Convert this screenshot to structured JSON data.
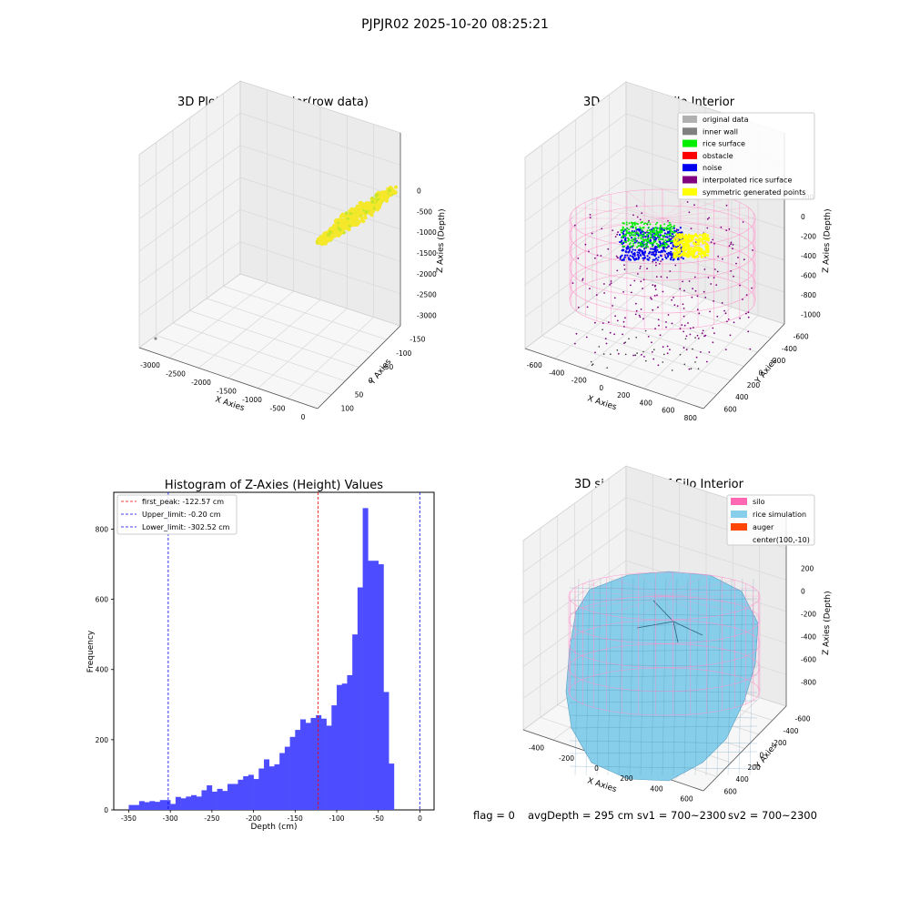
{
  "figure_title": "PJPJR02 2025-10-20 08:25:21",
  "status_line": {
    "flag": "flag = 0",
    "avg_depth": "avgDepth = 295 cm",
    "sv1": "sv1 = 700~2300",
    "sv2": "sv2 = 700~2300"
  },
  "colors": {
    "yellow": "#f5e82a",
    "yellow_green": "#c8e629",
    "green": "#00ee00",
    "blue": "#0000ee",
    "purple": "#800080",
    "pink": "#ff8fc8",
    "gray_light": "#b0b0b0",
    "gray": "#808080",
    "red": "#ff0000",
    "hist_bar": "#4d4dff",
    "sky": "#87ceeb",
    "orange": "#ff4500",
    "silo_legend": "#ff69b4"
  },
  "chart_data": [
    {
      "type": "scatter",
      "title": "3D Plot of Silo Interior(row data)",
      "xlabel": "X Axies",
      "ylabel": "Y Axies",
      "zlabel": "Z Axies (Depth)",
      "x_ticks": [
        "-3000",
        "-2500",
        "-2000",
        "-1500",
        "-1000",
        "-500",
        "0"
      ],
      "y_ticks": [
        "100",
        "50",
        "0",
        "-50",
        "-100",
        "-150"
      ],
      "z_ticks": [
        "0",
        "-500",
        "-1000",
        "-1500",
        "-2000",
        "-2500",
        "-3000"
      ]
    },
    {
      "type": "scatter",
      "title": "3D classify of Silo Interior",
      "xlabel": "X Axies",
      "ylabel": "Y Axies",
      "zlabel": "Z Axies (Depth)",
      "x_ticks": [
        "-600",
        "-400",
        "-200",
        "0",
        "200",
        "400",
        "600",
        "800"
      ],
      "y_ticks": [
        "600",
        "400",
        "200",
        "0",
        "-200",
        "-400",
        "-600"
      ],
      "z_ticks": [
        "200",
        "0",
        "-200",
        "-400",
        "-600",
        "-800",
        "-1000"
      ],
      "legend_position": "top-right",
      "legend": [
        {
          "label": "original data",
          "color": "#b0b0b0"
        },
        {
          "label": "inner wall",
          "color": "#808080"
        },
        {
          "label": "rice surface",
          "color": "#00ee00"
        },
        {
          "label": "obstacle",
          "color": "#ff0000"
        },
        {
          "label": "noise",
          "color": "#0000ee"
        },
        {
          "label": "interpolated rice surface",
          "color": "#800080"
        },
        {
          "label": "symmetric generated points",
          "color": "#ffff00"
        }
      ]
    },
    {
      "type": "bar",
      "title": "Histogram of Z-Axies (Height) Values",
      "xlabel": "Depth (cm)",
      "ylabel": "Frequency",
      "xlim": [
        -368,
        17
      ],
      "ylim": [
        0,
        905
      ],
      "x_ticks": [
        -350,
        -300,
        -250,
        -200,
        -150,
        -100,
        -50,
        0
      ],
      "y_ticks": [
        0,
        200,
        400,
        600,
        800
      ],
      "bin_width": 6.25,
      "bin_start": -350,
      "values": [
        14,
        14,
        25,
        22,
        25,
        23,
        28,
        28,
        17,
        37,
        33,
        38,
        42,
        38,
        56,
        70,
        52,
        60,
        54,
        74,
        74,
        86,
        96,
        100,
        88,
        118,
        144,
        124,
        130,
        162,
        180,
        208,
        228,
        258,
        248,
        262,
        270,
        260,
        240,
        298,
        356,
        360,
        384,
        500,
        634,
        860,
        710,
        710,
        700,
        336,
        132
      ],
      "lines": [
        {
          "label": "first_peak: -122.57 cm",
          "x": -122.57,
          "color": "#ff0000"
        },
        {
          "label": "Upper_limit: -0.20 cm",
          "x": -0.2,
          "color": "#0000ee"
        },
        {
          "label": "Lower_limit: -302.52 cm",
          "x": -302.52,
          "color": "#0000ee"
        }
      ],
      "legend_position": "top-left"
    },
    {
      "type": "area",
      "title": "3D simulation of Silo Interior",
      "xlabel": "X Axies",
      "ylabel": "Y Axies",
      "zlabel": "Z Axies (Depth)",
      "x_ticks": [
        "-400",
        "-200",
        "0",
        "200",
        "400",
        "600"
      ],
      "y_ticks": [
        "600",
        "400",
        "200",
        "0",
        "-200",
        "-400",
        "-600"
      ],
      "z_ticks": [
        "200",
        "0",
        "-200",
        "-400",
        "-600",
        "-800"
      ],
      "legend_position": "top-right",
      "legend": [
        {
          "label": "silo",
          "color": "#ff69b4"
        },
        {
          "label": "rice simulation",
          "color": "#87ceeb"
        },
        {
          "label": "auger",
          "color": "#ff4500"
        },
        {
          "label": "center(100,-10)",
          "color": ""
        }
      ]
    }
  ]
}
